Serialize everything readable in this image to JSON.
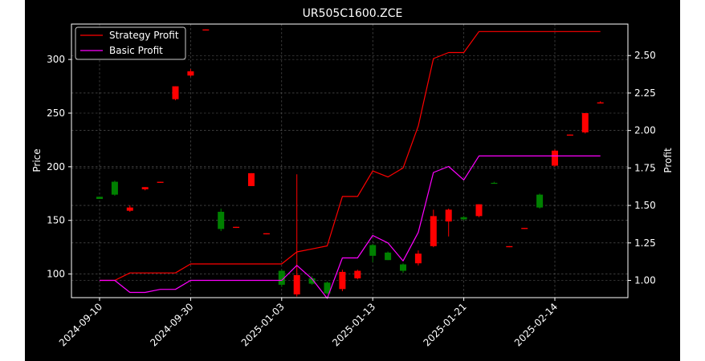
{
  "chart_data": {
    "type": "candlestick",
    "title": "UR505C1600.ZCE",
    "ylabel_left": "Price",
    "ylabel_right": "Profit",
    "ylim_left": [
      78,
      333
    ],
    "ylim_right": [
      0.885,
      2.71
    ],
    "yticks_left": [
      100,
      150,
      200,
      250,
      300
    ],
    "yticks_right": [
      1.0,
      1.25,
      1.5,
      1.75,
      2.0,
      2.25,
      2.5
    ],
    "x_tick_labels": [
      "2024-09-10",
      "2024-09-30",
      "2025-01-03",
      "2025-01-13",
      "2025-01-21",
      "2025-02-14"
    ],
    "x_tick_indices": [
      0,
      6,
      12,
      18,
      24,
      30
    ],
    "grid": true,
    "legend_position": "top-left",
    "colors": {
      "background": "#000000",
      "up_candle": "#008000",
      "down_candle": "#ff0000",
      "strategy_line": "#ff0000",
      "basic_line": "#ff00ff",
      "grid": "#888888"
    },
    "candles": [
      {
        "open": 170,
        "high": 172,
        "low": 170,
        "close": 172
      },
      {
        "open": 174,
        "high": 187,
        "low": 173,
        "close": 186
      },
      {
        "open": 162,
        "high": 164,
        "low": 158,
        "close": 159
      },
      {
        "open": 181,
        "high": 181,
        "low": 178,
        "close": 179
      },
      {
        "open": 186,
        "high": 186,
        "low": 185,
        "close": 185
      },
      {
        "open": 275,
        "high": 275,
        "low": 262,
        "close": 263
      },
      {
        "open": 289,
        "high": 291,
        "low": 284,
        "close": 285
      },
      {
        "open": 328,
        "high": 328,
        "low": 327,
        "close": 327
      },
      {
        "open": 142,
        "high": 161,
        "low": 140,
        "close": 158
      },
      {
        "open": 144,
        "high": 144,
        "low": 143,
        "close": 143
      },
      {
        "open": 194,
        "high": 194,
        "low": 182,
        "close": 182
      },
      {
        "open": 138,
        "high": 138,
        "low": 137,
        "close": 137
      },
      {
        "open": 90,
        "high": 104,
        "low": 88,
        "close": 103
      },
      {
        "open": 99,
        "high": 193,
        "low": 79,
        "close": 81
      },
      {
        "open": 91,
        "high": 98,
        "low": 90,
        "close": 96
      },
      {
        "open": 82,
        "high": 93,
        "low": 81,
        "close": 92
      },
      {
        "open": 102,
        "high": 104,
        "low": 84,
        "close": 86
      },
      {
        "open": 103,
        "high": 104,
        "low": 95,
        "close": 96
      },
      {
        "open": 117,
        "high": 128,
        "low": 111,
        "close": 127
      },
      {
        "open": 113,
        "high": 121,
        "low": 113,
        "close": 120
      },
      {
        "open": 103,
        "high": 110,
        "low": 101,
        "close": 109
      },
      {
        "open": 119,
        "high": 122,
        "low": 108,
        "close": 110
      },
      {
        "open": 154,
        "high": 160,
        "low": 125,
        "close": 126
      },
      {
        "open": 160,
        "high": 161,
        "low": 135,
        "close": 149
      },
      {
        "open": 151,
        "high": 154,
        "low": 150,
        "close": 153
      },
      {
        "open": 165,
        "high": 165,
        "low": 153,
        "close": 154
      },
      {
        "open": 185,
        "high": 186,
        "low": 185,
        "close": 185
      },
      {
        "open": 126,
        "high": 126,
        "low": 125,
        "close": 125
      },
      {
        "open": 143,
        "high": 143,
        "low": 142,
        "close": 142
      },
      {
        "open": 162,
        "high": 175,
        "low": 161,
        "close": 174
      },
      {
        "open": 215,
        "high": 216,
        "low": 200,
        "close": 201
      },
      {
        "open": 230,
        "high": 230,
        "low": 229,
        "close": 229
      },
      {
        "open": 250,
        "high": 250,
        "low": 231,
        "close": 232
      },
      {
        "open": 260,
        "high": 261,
        "low": 259,
        "close": 259
      }
    ],
    "series": [
      {
        "name": "Strategy Profit",
        "color": "#ff0000",
        "values": [
          1.0,
          1.0,
          1.05,
          1.05,
          1.05,
          1.05,
          1.11,
          1.11,
          1.11,
          1.11,
          1.11,
          1.11,
          1.11,
          1.19,
          1.21,
          1.23,
          1.56,
          1.56,
          1.73,
          1.69,
          1.75,
          2.03,
          2.48,
          2.52,
          2.52,
          2.66,
          2.66,
          2.66,
          2.66,
          2.66,
          2.66,
          2.66,
          2.66,
          2.66
        ]
      },
      {
        "name": "Basic Profit",
        "color": "#ff00ff",
        "values": [
          1.0,
          1.0,
          0.92,
          0.92,
          0.94,
          0.94,
          1.0,
          1.0,
          1.0,
          1.0,
          1.0,
          1.0,
          1.0,
          1.1,
          1.01,
          0.88,
          1.15,
          1.15,
          1.3,
          1.25,
          1.13,
          1.32,
          1.72,
          1.76,
          1.67,
          1.83,
          1.83,
          1.83,
          1.83,
          1.83,
          1.83,
          1.83,
          1.83,
          1.83
        ]
      }
    ]
  }
}
